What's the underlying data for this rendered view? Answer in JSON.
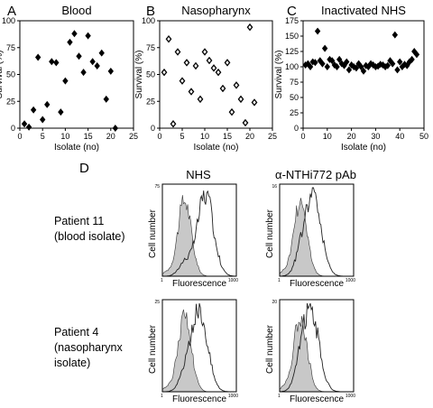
{
  "chart_data": [
    {
      "panel": "A",
      "type": "scatter",
      "title": "Blood",
      "xlabel": "Isolate (no)",
      "ylabel": "Survival (%)",
      "xlim": [
        0,
        25
      ],
      "ylim": [
        0,
        100
      ],
      "xticks": [
        0,
        5,
        10,
        15,
        20,
        25
      ],
      "yticks": [
        0,
        25,
        50,
        75,
        100
      ],
      "marker": "diamond-filled",
      "x": [
        1,
        2,
        3,
        4,
        5,
        6,
        7,
        8,
        9,
        10,
        11,
        12,
        13,
        14,
        15,
        16,
        17,
        18,
        19,
        20,
        21
      ],
      "y": [
        4,
        1,
        17,
        66,
        8,
        22,
        62,
        61,
        15,
        44,
        80,
        88,
        67,
        52,
        86,
        62,
        58,
        70,
        27,
        53,
        0
      ]
    },
    {
      "panel": "B",
      "type": "scatter",
      "title": "Nasopharynx",
      "xlabel": "Isolate (no)",
      "ylabel": "Survival (%)",
      "xlim": [
        0,
        25
      ],
      "ylim": [
        0,
        100
      ],
      "xticks": [
        0,
        5,
        10,
        15,
        20,
        25
      ],
      "yticks": [
        0,
        25,
        50,
        75,
        100
      ],
      "marker": "diamond-open",
      "x": [
        1,
        2,
        3,
        4,
        5,
        6,
        7,
        8,
        9,
        10,
        11,
        12,
        13,
        14,
        15,
        16,
        17,
        18,
        19,
        20,
        21
      ],
      "y": [
        52,
        83,
        4,
        71,
        44,
        61,
        34,
        58,
        27,
        71,
        63,
        56,
        52,
        37,
        61,
        15,
        40,
        27,
        5,
        94,
        24
      ]
    },
    {
      "panel": "C",
      "type": "scatter",
      "title": "Inactivated NHS",
      "xlabel": "Isolate (no)",
      "ylabel": "Survival (%)",
      "xlim": [
        0,
        50
      ],
      "ylim": [
        0,
        175
      ],
      "xticks": [
        0,
        10,
        20,
        30,
        40,
        50
      ],
      "yticks": [
        0,
        25,
        50,
        75,
        100,
        125,
        150,
        175
      ],
      "marker": "diamond-filled",
      "x": [
        1,
        2,
        3,
        4,
        5,
        6,
        7,
        8,
        9,
        10,
        11,
        12,
        13,
        14,
        15,
        16,
        17,
        18,
        19,
        20,
        21,
        22,
        23,
        24,
        25,
        26,
        27,
        28,
        29,
        30,
        31,
        32,
        33,
        34,
        35,
        36,
        37,
        38,
        39,
        40,
        41,
        42,
        43,
        44,
        45,
        46,
        47
      ],
      "y": [
        103,
        105,
        100,
        108,
        107,
        158,
        110,
        105,
        130,
        100,
        112,
        110,
        103,
        100,
        112,
        105,
        102,
        108,
        95,
        103,
        100,
        98,
        105,
        100,
        93,
        102,
        100,
        105,
        103,
        100,
        101,
        104,
        103,
        100,
        102,
        110,
        105,
        152,
        95,
        108,
        100,
        104,
        102,
        108,
        112,
        125,
        120
      ]
    }
  ],
  "panel_d": {
    "letter": "D",
    "col_headers": [
      "NHS",
      "α-NTHi772 pAb"
    ],
    "rows": [
      {
        "label_line1": "Patient 11",
        "label_line2": "(blood isolate)"
      },
      {
        "label_line1": "Patient 4",
        "label_line2": "(nasopharynx",
        "label_line3": "isolate)"
      }
    ],
    "ylabel": "Cell number",
    "xlabel": "Fluorescence",
    "x_min_label": "1",
    "x_max_label": "1000",
    "y_max_labels": [
      "75",
      "16",
      "25",
      "20"
    ],
    "shaded_color": "#c8c8c8",
    "histograms": [
      {
        "control_peak": 0.3,
        "test_peak": 0.58
      },
      {
        "control_peak": 0.28,
        "test_peak": 0.45
      },
      {
        "control_peak": 0.3,
        "test_peak": 0.5
      },
      {
        "control_peak": 0.28,
        "test_peak": 0.42
      }
    ]
  }
}
